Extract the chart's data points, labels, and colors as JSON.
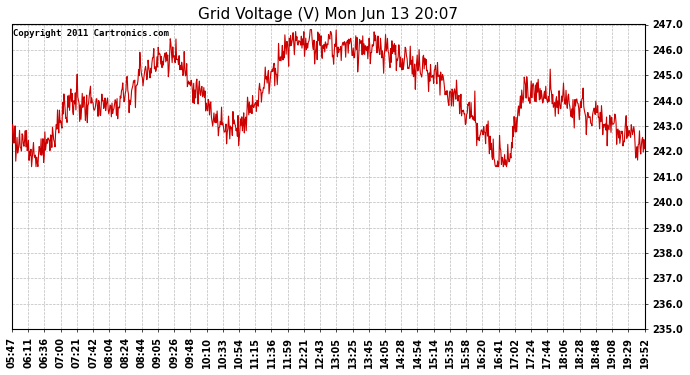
{
  "title": "Grid Voltage (V) Mon Jun 13 20:07",
  "copyright": "Copyright 2011 Cartronics.com",
  "line_color": "#cc0000",
  "bg_color": "#ffffff",
  "plot_bg_color": "#ffffff",
  "grid_color": "#bbbbbb",
  "ylim": [
    235.0,
    247.0
  ],
  "yticks": [
    235.0,
    236.0,
    237.0,
    238.0,
    239.0,
    240.0,
    241.0,
    242.0,
    243.0,
    244.0,
    245.0,
    246.0,
    247.0
  ],
  "xtick_labels": [
    "05:47",
    "06:11",
    "06:36",
    "07:00",
    "07:21",
    "07:42",
    "08:04",
    "08:24",
    "08:44",
    "09:05",
    "09:26",
    "09:48",
    "10:10",
    "10:33",
    "10:54",
    "11:15",
    "11:36",
    "11:59",
    "12:21",
    "12:43",
    "13:05",
    "13:25",
    "13:45",
    "14:05",
    "14:28",
    "14:54",
    "15:14",
    "15:35",
    "15:58",
    "16:20",
    "16:41",
    "17:02",
    "17:24",
    "17:44",
    "18:06",
    "18:28",
    "18:48",
    "19:08",
    "19:29",
    "19:52"
  ],
  "title_fontsize": 11,
  "tick_fontsize": 7,
  "copyright_fontsize": 6.5,
  "line_width": 0.8
}
